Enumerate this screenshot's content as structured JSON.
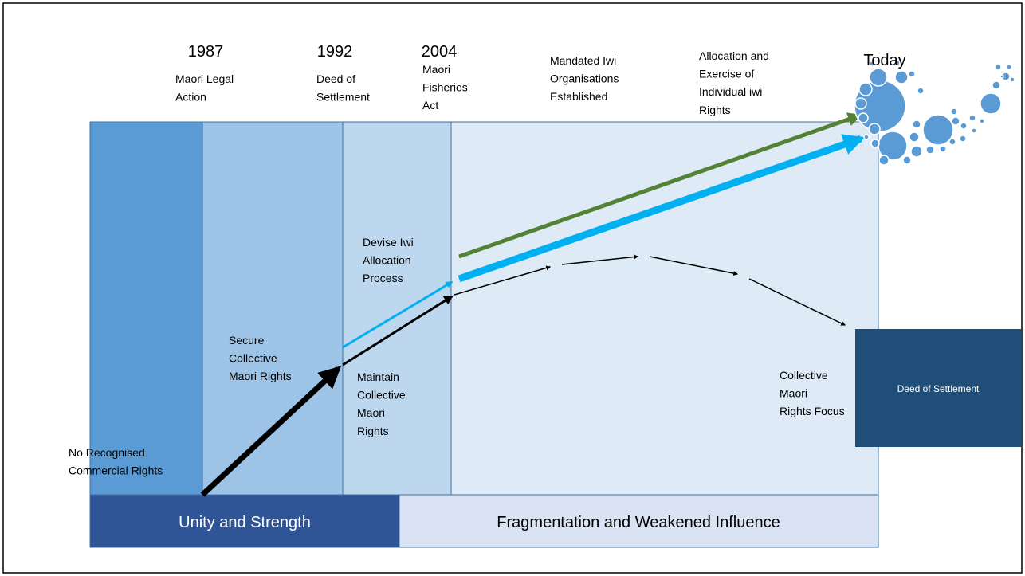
{
  "years": [
    "1987",
    "1992",
    "2004",
    "Today"
  ],
  "milestones": [
    [
      "Maori Legal",
      "Action"
    ],
    [
      "Deed of",
      "Settlement"
    ],
    [
      "Maori",
      "Fisheries",
      "Act"
    ],
    [
      "Mandated Iwi",
      "Organisations",
      "Established"
    ],
    [
      "Allocation and",
      "Exercise of",
      "Individual iwi",
      "Rights"
    ]
  ],
  "phases": [
    [
      "No Recognised",
      "Commercial  Rights"
    ],
    [
      "Secure",
      "Collective",
      "Maori Rights"
    ],
    [
      "Maintain",
      "Collective",
      "Maori",
      "Rights"
    ],
    [
      "Devise Iwi",
      "Allocation",
      "Process"
    ],
    [
      "Collective",
      "Maori",
      "Rights Focus"
    ]
  ],
  "bottom_bars": [
    "Unity and Strength",
    "Fragmentation and Weakened Influence"
  ],
  "side_box": "Deed of Settlement"
}
